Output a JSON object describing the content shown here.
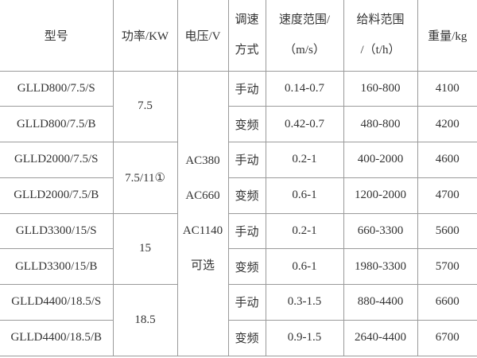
{
  "headers": {
    "model": "型号",
    "power": "功率/KW",
    "voltage": "电压/V",
    "speed_mode": [
      "调速",
      "方式"
    ],
    "speed_range": [
      "速度范围/",
      "（m/s）"
    ],
    "feed_range": [
      "给料范围",
      "/（t/h）"
    ],
    "weight": "重量/kg"
  },
  "power_groups": [
    "7.5",
    "7.5/11①",
    "15",
    "18.5"
  ],
  "voltage_lines": [
    "AC380",
    "AC660",
    "AC1140",
    "可选"
  ],
  "rows": [
    {
      "model": "GLLD800/7.5/S",
      "mode": "手动",
      "speed": "0.14-0.7",
      "feed": "160-800",
      "weight": "4100"
    },
    {
      "model": "GLLD800/7.5/B",
      "mode": "变频",
      "speed": "0.42-0.7",
      "feed": "480-800",
      "weight": "4200"
    },
    {
      "model": "GLLD2000/7.5/S",
      "mode": "手动",
      "speed": "0.2-1",
      "feed": "400-2000",
      "weight": "4600"
    },
    {
      "model": "GLLD2000/7.5/B",
      "mode": "变频",
      "speed": "0.6-1",
      "feed": "1200-2000",
      "weight": "4700"
    },
    {
      "model": "GLLD3300/15/S",
      "mode": "手动",
      "speed": "0.2-1",
      "feed": "660-3300",
      "weight": "5600"
    },
    {
      "model": "GLLD3300/15/B",
      "mode": "变频",
      "speed": "0.6-1",
      "feed": "1980-3300",
      "weight": "5700"
    },
    {
      "model": "GLLD4400/18.5/S",
      "mode": "手动",
      "speed": "0.3-1.5",
      "feed": "880-4400",
      "weight": "6600"
    },
    {
      "model": "GLLD4400/18.5/B",
      "mode": "变频",
      "speed": "0.9-1.5",
      "feed": "2640-4400",
      "weight": "6700"
    }
  ]
}
